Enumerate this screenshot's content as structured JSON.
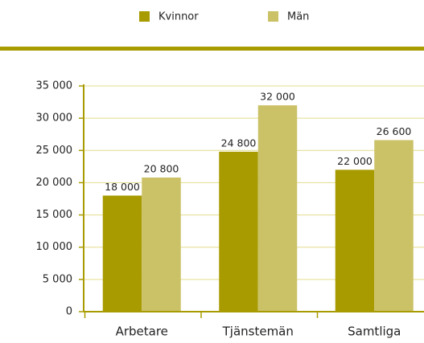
{
  "chart_data": {
    "type": "bar",
    "categories": [
      "Arbetare",
      "Tjänstemän",
      "Samtliga"
    ],
    "series": [
      {
        "name": "Kvinnor",
        "color": "#a89b00",
        "values": [
          18000,
          24800,
          22000
        ],
        "value_labels": [
          "18 000",
          "24 800",
          "22 000"
        ]
      },
      {
        "name": "Män",
        "color": "#cbc268",
        "values": [
          20800,
          32000,
          26600
        ],
        "value_labels": [
          "20 800",
          "32 000",
          "26 600"
        ]
      }
    ],
    "ylim": [
      0,
      35000
    ],
    "yticks": [
      {
        "value": 0,
        "label": "0"
      },
      {
        "value": 5000,
        "label": "5 000"
      },
      {
        "value": 10000,
        "label": "10 000"
      },
      {
        "value": 15000,
        "label": "15 000"
      },
      {
        "value": 20000,
        "label": "20 000"
      },
      {
        "value": 25000,
        "label": "25 000"
      },
      {
        "value": 30000,
        "label": "30 000"
      },
      {
        "value": 35000,
        "label": "35 000"
      }
    ],
    "grid": true,
    "legend": "top"
  }
}
